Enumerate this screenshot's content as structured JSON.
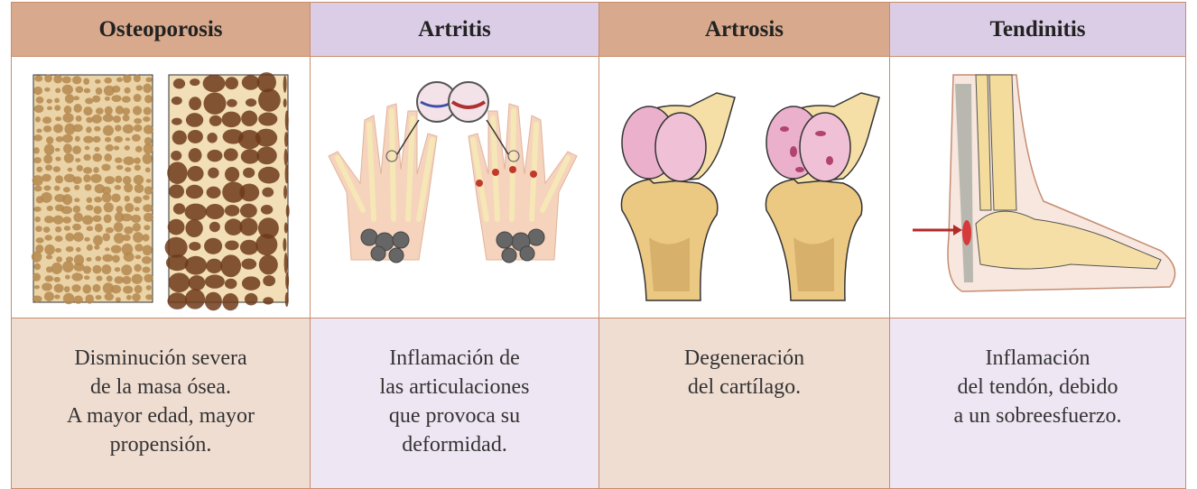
{
  "columns": [
    {
      "header": "Osteoporosis",
      "description": [
        "Disminución severa",
        "de la masa ósea.",
        "A mayor edad, mayor",
        "propensión."
      ]
    },
    {
      "header": "Artritis",
      "description": [
        "Inflamación de",
        "las articulaciones",
        "que provoca su",
        "deformidad."
      ]
    },
    {
      "header": "Artrosis",
      "description": [
        "Degeneración",
        "del cartílago."
      ]
    },
    {
      "header": "Tendinitis",
      "description": [
        "Inflamación",
        "del tendón, debido",
        "a un sobreesfuerzo."
      ]
    }
  ]
}
